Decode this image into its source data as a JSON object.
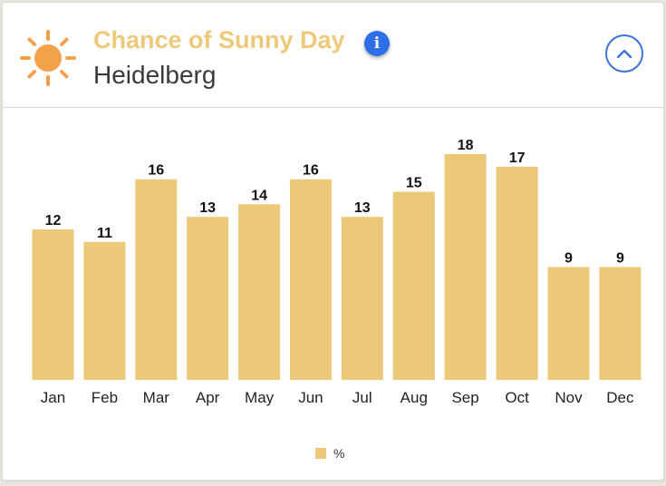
{
  "header": {
    "title": "Chance of Sunny Day",
    "subtitle": "Heidelberg",
    "sun_icon": "sun-icon",
    "info_icon": "info-icon",
    "info_glyph": "i",
    "collapse_icon": "chevron-up-icon"
  },
  "colors": {
    "bar": "#ebc978",
    "title": "#eec97a",
    "sun": "#f4a24a",
    "accent": "#2e6ee6"
  },
  "chart_data": {
    "type": "bar",
    "categories": [
      "Jan",
      "Feb",
      "Mar",
      "Apr",
      "May",
      "Jun",
      "Jul",
      "Aug",
      "Sep",
      "Oct",
      "Nov",
      "Dec"
    ],
    "series": [
      {
        "name": "%",
        "values": [
          12,
          11,
          16,
          13,
          14,
          16,
          13,
          15,
          18,
          17,
          9,
          9
        ]
      }
    ],
    "title": "Chance of Sunny Day",
    "xlabel": "",
    "ylabel": "",
    "ylim": [
      0,
      18
    ],
    "grid": false,
    "legend": "bottom-center",
    "data_labels": true
  }
}
